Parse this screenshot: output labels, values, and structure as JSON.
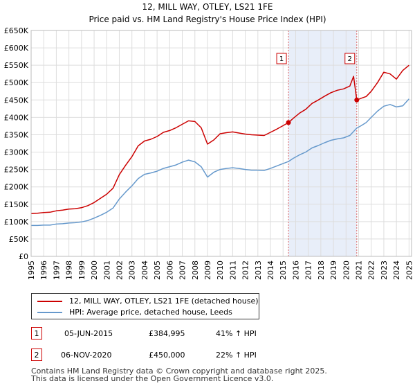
{
  "chart_data": {
    "type": "line",
    "title": "12, MILL WAY, OTLEY, LS21 1FE",
    "subtitle": "Price paid vs. HM Land Registry's House Price Index (HPI)",
    "xlabel": "",
    "ylabel": "",
    "xlim": [
      1995,
      2025.2
    ],
    "ylim": [
      0,
      650000
    ],
    "y_ticks": [
      0,
      50000,
      100000,
      150000,
      200000,
      250000,
      300000,
      350000,
      400000,
      450000,
      500000,
      550000,
      600000,
      650000
    ],
    "y_tick_labels": [
      "£0",
      "£50K",
      "£100K",
      "£150K",
      "£200K",
      "£250K",
      "£300K",
      "£350K",
      "£400K",
      "£450K",
      "£500K",
      "£550K",
      "£600K",
      "£650K"
    ],
    "x_ticks": [
      1995,
      1996,
      1997,
      1998,
      1999,
      2000,
      2001,
      2002,
      2003,
      2004,
      2005,
      2006,
      2007,
      2008,
      2009,
      2010,
      2011,
      2012,
      2013,
      2014,
      2015,
      2016,
      2017,
      2018,
      2019,
      2020,
      2021,
      2022,
      2023,
      2024,
      2025
    ],
    "grid": true,
    "shaded_period": [
      2015.43,
      2020.85
    ],
    "series": [
      {
        "name": "12, MILL WAY, OTLEY, LS21 1FE (detached house)",
        "color": "#cc0000",
        "x": [
          1995,
          1995.5,
          1996,
          1996.5,
          1997,
          1997.5,
          1998,
          1998.5,
          1999,
          1999.5,
          2000,
          2000.5,
          2001,
          2001.5,
          2002,
          2002.5,
          2003,
          2003.5,
          2004,
          2004.5,
          2005,
          2005.5,
          2006,
          2006.5,
          2007,
          2007.5,
          2008,
          2008.5,
          2009,
          2009.5,
          2010,
          2010.5,
          2011,
          2011.5,
          2012,
          2012.5,
          2013,
          2013.5,
          2014,
          2014.5,
          2015,
          2015.43,
          2015.8,
          2016.3,
          2016.8,
          2017.3,
          2017.8,
          2018.3,
          2018.8,
          2019.3,
          2019.8,
          2020.3,
          2020.6,
          2020.85,
          2021.2,
          2021.6,
          2022,
          2022.5,
          2023,
          2023.5,
          2024,
          2024.5,
          2025
        ],
        "values": [
          123000,
          124000,
          126000,
          127000,
          131000,
          133000,
          136000,
          137000,
          140000,
          146000,
          155000,
          167000,
          179000,
          196000,
          235000,
          262000,
          287000,
          318000,
          332000,
          337000,
          345000,
          357000,
          362000,
          370000,
          380000,
          390000,
          388000,
          370000,
          323000,
          335000,
          353000,
          356000,
          358000,
          355000,
          352000,
          350000,
          349000,
          348000,
          357000,
          366000,
          376000,
          384995,
          397000,
          412000,
          423000,
          440000,
          450000,
          461000,
          471000,
          478000,
          482000,
          490000,
          518000,
          450000,
          455000,
          460000,
          475000,
          500000,
          530000,
          525000,
          510000,
          535000,
          550000
        ]
      },
      {
        "name": "HPI: Average price, detached house, Leeds",
        "color": "#6699cc",
        "x": [
          1995,
          1995.5,
          1996,
          1996.5,
          1997,
          1997.5,
          1998,
          1998.5,
          1999,
          1999.5,
          2000,
          2000.5,
          2001,
          2001.5,
          2002,
          2002.5,
          2003,
          2003.5,
          2004,
          2004.5,
          2005,
          2005.5,
          2006,
          2006.5,
          2007,
          2007.5,
          2008,
          2008.5,
          2009,
          2009.5,
          2010,
          2010.5,
          2011,
          2011.5,
          2012,
          2012.5,
          2013,
          2013.5,
          2014,
          2014.5,
          2015,
          2015.43,
          2015.8,
          2016.3,
          2016.8,
          2017.3,
          2017.8,
          2018.3,
          2018.8,
          2019.3,
          2019.8,
          2020.3,
          2020.85,
          2021.2,
          2021.6,
          2022,
          2022.5,
          2023,
          2023.5,
          2024,
          2024.5,
          2025
        ],
        "values": [
          89000,
          89000,
          90000,
          90000,
          93000,
          94000,
          96000,
          97000,
          99000,
          103000,
          110000,
          118000,
          127000,
          139000,
          165000,
          185000,
          203000,
          224000,
          236000,
          240000,
          245000,
          253000,
          258000,
          263000,
          271000,
          277000,
          272000,
          258000,
          228000,
          242000,
          250000,
          253000,
          255000,
          253000,
          250000,
          248000,
          248000,
          247000,
          253000,
          260000,
          267000,
          273000,
          282000,
          292000,
          300000,
          312000,
          319000,
          327000,
          334000,
          338000,
          341000,
          348000,
          369000,
          376000,
          385000,
          400000,
          418000,
          432000,
          437000,
          430000,
          433000,
          453000
        ]
      }
    ],
    "sale_markers": [
      {
        "label": "1",
        "x": 2015.43,
        "value": 384995
      },
      {
        "label": "2",
        "x": 2020.85,
        "value": 450000
      }
    ]
  },
  "legend": {
    "entries": [
      {
        "label": "12, MILL WAY, OTLEY, LS21 1FE (detached house)",
        "color": "#cc0000"
      },
      {
        "label": "HPI: Average price, detached house, Leeds",
        "color": "#6699cc"
      }
    ]
  },
  "sales": [
    {
      "num": "1",
      "date": "05-JUN-2015",
      "price": "£384,995",
      "hpi": "41% ↑ HPI"
    },
    {
      "num": "2",
      "date": "06-NOV-2020",
      "price": "£450,000",
      "hpi": "22% ↑ HPI"
    }
  ],
  "footer": {
    "line1": "Contains HM Land Registry data © Crown copyright and database right 2025.",
    "line2": "This data is licensed under the Open Government Licence v3.0."
  }
}
